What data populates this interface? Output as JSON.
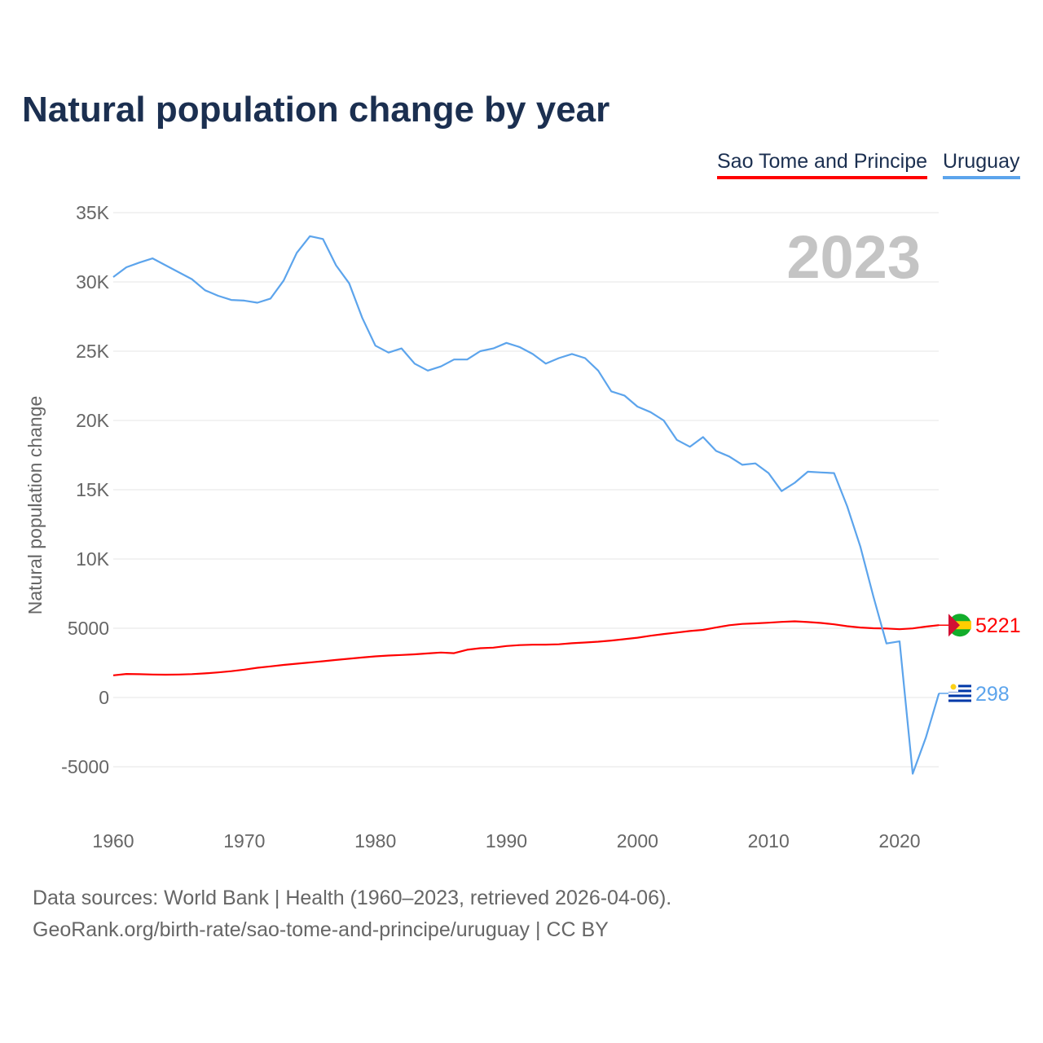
{
  "chart_data": {
    "type": "line",
    "title": "Natural population change by year",
    "ylabel": "Natural population change",
    "xlabel": "",
    "year_label": "2023",
    "ylim": [
      -7500,
      36000
    ],
    "xlim": [
      1960,
      2023
    ],
    "yticks": [
      -5000,
      0,
      5000,
      10000,
      15000,
      20000,
      25000,
      30000,
      35000
    ],
    "ytick_labels": [
      "-5000",
      "0",
      "5000",
      "10K",
      "15K",
      "20K",
      "25K",
      "30K",
      "35K"
    ],
    "xticks": [
      1960,
      1970,
      1980,
      1990,
      2000,
      2010,
      2020
    ],
    "xtick_labels": [
      "1960",
      "1970",
      "1980",
      "1990",
      "2000",
      "2010",
      "2020"
    ],
    "grid": true,
    "legend_position": "top-right",
    "x": [
      1960,
      1961,
      1962,
      1963,
      1964,
      1965,
      1966,
      1967,
      1968,
      1969,
      1970,
      1971,
      1972,
      1973,
      1974,
      1975,
      1976,
      1977,
      1978,
      1979,
      1980,
      1981,
      1982,
      1983,
      1984,
      1985,
      1986,
      1987,
      1988,
      1989,
      1990,
      1991,
      1992,
      1993,
      1994,
      1995,
      1996,
      1997,
      1998,
      1999,
      2000,
      2001,
      2002,
      2003,
      2004,
      2005,
      2006,
      2007,
      2008,
      2009,
      2010,
      2011,
      2012,
      2013,
      2014,
      2015,
      2016,
      2017,
      2018,
      2019,
      2020,
      2021,
      2022,
      2023
    ],
    "series": [
      {
        "name": "Sao Tome and Principe",
        "color": "#ff0000",
        "end_label": "5221",
        "values": [
          1600,
          1700,
          1680,
          1660,
          1650,
          1660,
          1690,
          1740,
          1810,
          1900,
          2010,
          2150,
          2250,
          2350,
          2440,
          2530,
          2620,
          2710,
          2800,
          2890,
          2970,
          3030,
          3070,
          3120,
          3180,
          3250,
          3200,
          3450,
          3560,
          3600,
          3720,
          3780,
          3810,
          3820,
          3840,
          3920,
          3970,
          4030,
          4110,
          4210,
          4320,
          4460,
          4580,
          4690,
          4800,
          4880,
          5050,
          5220,
          5310,
          5350,
          5400,
          5460,
          5500,
          5450,
          5380,
          5280,
          5150,
          5050,
          5000,
          4980,
          4930,
          4990,
          5120,
          5221
        ]
      },
      {
        "name": "Uruguay",
        "color": "#5ca4ec",
        "end_label": "298",
        "values": [
          30350,
          31060,
          31400,
          31700,
          31200,
          30700,
          30200,
          29400,
          29000,
          28700,
          28650,
          28500,
          28800,
          30100,
          32100,
          33300,
          33100,
          31200,
          29900,
          27400,
          25400,
          24900,
          25200,
          24100,
          23600,
          23900,
          24400,
          24400,
          25000,
          25200,
          25600,
          25300,
          24800,
          24100,
          24500,
          24800,
          24500,
          23600,
          22100,
          21800,
          21000,
          20600,
          20000,
          18600,
          18100,
          18800,
          17800,
          17400,
          16800,
          16900,
          16200,
          14900,
          15500,
          16300,
          16250,
          16200,
          13800,
          10900,
          7300,
          3900,
          4050,
          -5500,
          -2900,
          298
        ]
      }
    ]
  },
  "footer": {
    "line1": "Data sources: World Bank | Health (1960–2023, retrieved 2026-04-06).",
    "line2": "GeoRank.org/birth-rate/sao-tome-and-principe/uruguay | CC BY"
  }
}
